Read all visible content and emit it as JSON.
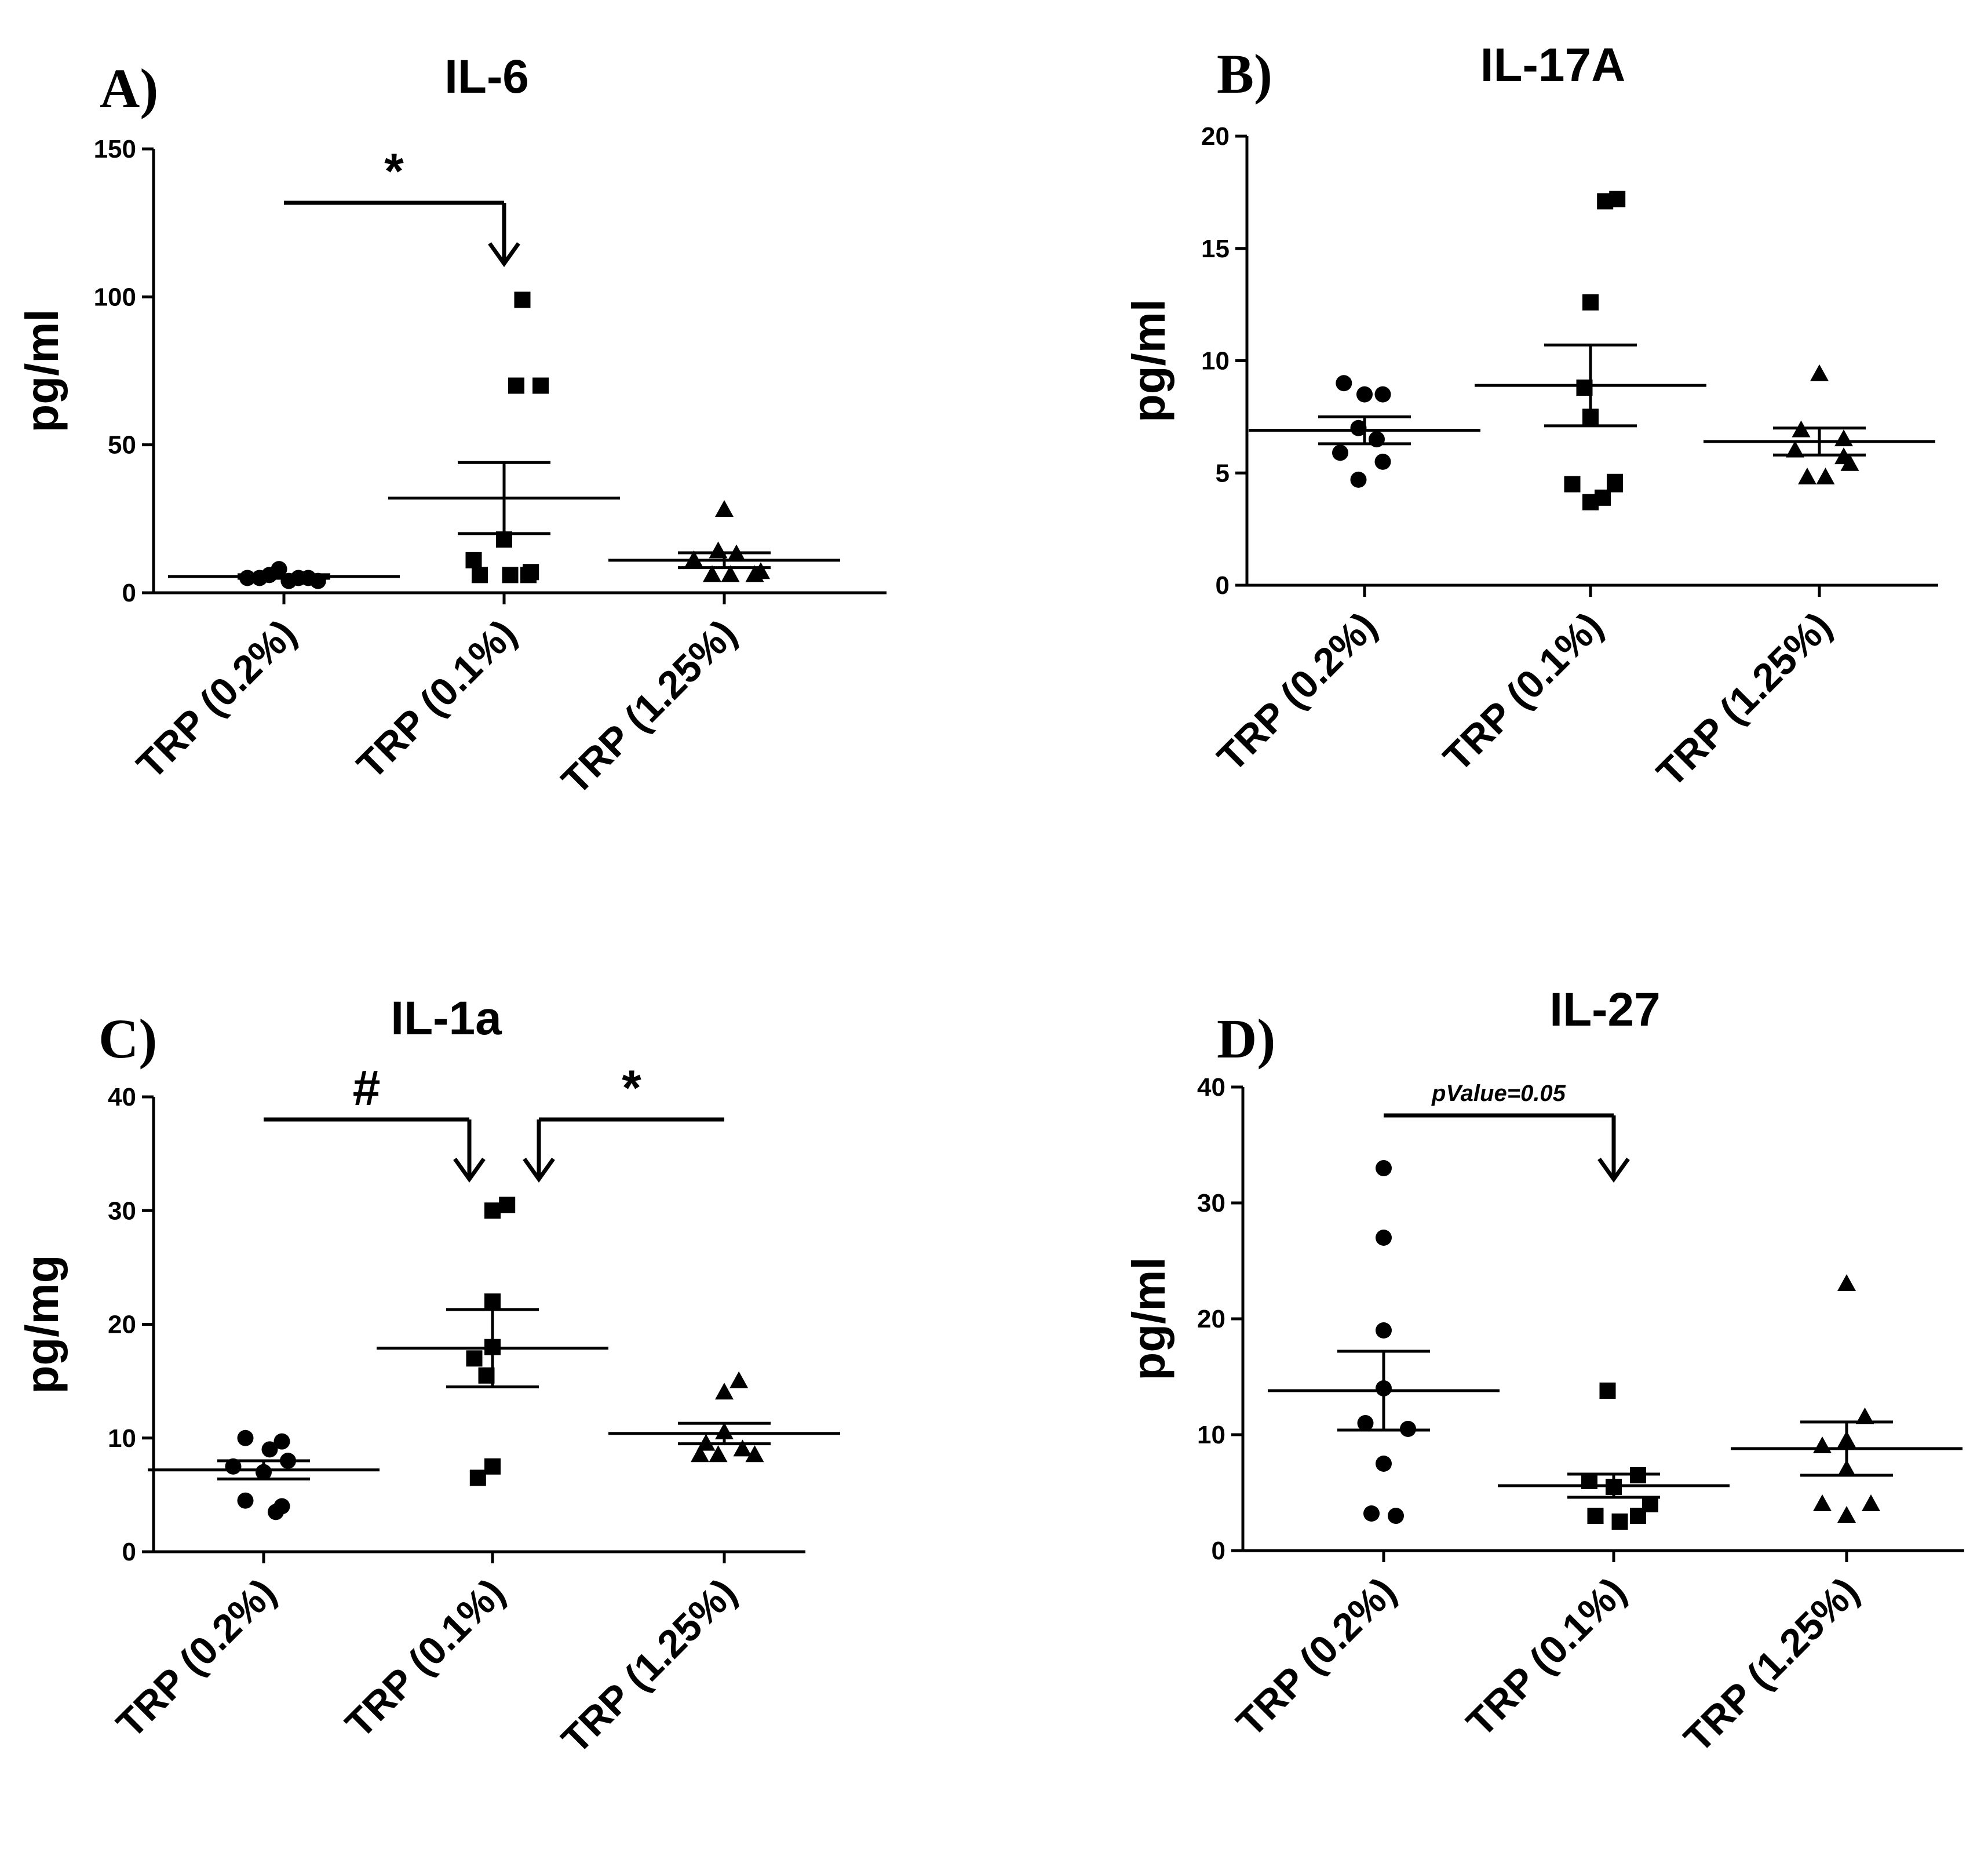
{
  "chart_data": [
    {
      "type": "scatter",
      "panel": "A)",
      "title": "IL-6",
      "ylabel": "pg/ml",
      "xlabel": "",
      "ylim": [
        0,
        150
      ],
      "yticks": [
        0,
        50,
        100,
        150
      ],
      "grid": false,
      "categories": [
        "TRP (0.2%)",
        "TRP (0.1%)",
        "TRP (1.25%)"
      ],
      "series": [
        {
          "name": "TRP (0.2%)",
          "marker": "circle",
          "points": [
            [
              -0.2,
              5
            ],
            [
              -0.12,
              6
            ],
            [
              -0.04,
              8
            ],
            [
              0.04,
              4
            ],
            [
              0.12,
              5
            ],
            [
              0.2,
              5
            ],
            [
              0.28,
              4
            ],
            [
              -0.3,
              5
            ]
          ],
          "mean": 5.5,
          "sem": 0.6
        },
        {
          "name": "TRP (0.1%)",
          "marker": "square",
          "points": [
            [
              0.15,
              99
            ],
            [
              0.1,
              70
            ],
            [
              0.3,
              70
            ],
            [
              0.0,
              18
            ],
            [
              -0.25,
              11
            ],
            [
              -0.2,
              6
            ],
            [
              0.05,
              6
            ],
            [
              0.2,
              6
            ],
            [
              0.22,
              7
            ]
          ],
          "mean": 32,
          "sem": 12
        },
        {
          "name": "TRP (1.25%)",
          "marker": "triangle",
          "points": [
            [
              0.0,
              28
            ],
            [
              -0.05,
              14
            ],
            [
              0.1,
              13
            ],
            [
              -0.25,
              11
            ],
            [
              -0.1,
              6
            ],
            [
              0.05,
              6
            ],
            [
              0.25,
              6
            ],
            [
              0.3,
              7
            ]
          ],
          "mean": 11,
          "sem": 2.5
        }
      ],
      "annotations": [
        {
          "label": "*",
          "from": 0,
          "to": 1
        }
      ]
    },
    {
      "type": "scatter",
      "panel": "B)",
      "title": "IL-17A",
      "ylabel": "pg/ml",
      "xlabel": "",
      "ylim": [
        0,
        20
      ],
      "yticks": [
        0,
        5,
        10,
        15,
        20
      ],
      "grid": false,
      "categories": [
        "TRP (0.2%)",
        "TRP (0.1%)",
        "TRP (1.25%)"
      ],
      "series": [
        {
          "name": "TRP (0.2%)",
          "marker": "circle",
          "points": [
            [
              -0.17,
              9.0
            ],
            [
              0.0,
              8.5
            ],
            [
              0.15,
              8.5
            ],
            [
              -0.05,
              7.0
            ],
            [
              0.1,
              6.5
            ],
            [
              -0.2,
              5.9
            ],
            [
              0.15,
              5.5
            ],
            [
              -0.05,
              4.7
            ]
          ],
          "mean": 6.9,
          "sem": 0.6
        },
        {
          "name": "TRP (0.1%)",
          "marker": "square",
          "points": [
            [
              0.12,
              17.1
            ],
            [
              0.22,
              17.2
            ],
            [
              0.0,
              12.6
            ],
            [
              -0.05,
              8.8
            ],
            [
              0.0,
              7.5
            ],
            [
              -0.15,
              4.5
            ],
            [
              0.2,
              4.5
            ],
            [
              0.2,
              4.6
            ],
            [
              0.0,
              3.7
            ],
            [
              0.1,
              3.9
            ]
          ],
          "mean": 8.9,
          "sem": 1.8
        },
        {
          "name": "TRP (1.25%)",
          "marker": "triangle",
          "points": [
            [
              0.0,
              9.4
            ],
            [
              -0.15,
              6.9
            ],
            [
              0.2,
              6.5
            ],
            [
              -0.2,
              6.0
            ],
            [
              0.2,
              5.7
            ],
            [
              -0.1,
              4.8
            ],
            [
              0.05,
              4.8
            ],
            [
              0.25,
              5.4
            ]
          ],
          "mean": 6.4,
          "sem": 0.6
        }
      ],
      "annotations": []
    },
    {
      "type": "scatter",
      "panel": "C)",
      "title": "IL-1a",
      "ylabel": "pg/mg",
      "xlabel": "",
      "ylim": [
        0,
        40
      ],
      "yticks": [
        0,
        10,
        20,
        30,
        40
      ],
      "grid": false,
      "categories": [
        "TRP (0.2%)",
        "TRP (0.1%)",
        "TRP (1.25%)"
      ],
      "series": [
        {
          "name": "TRP (0.2%)",
          "marker": "circle",
          "points": [
            [
              -0.15,
              10.0
            ],
            [
              0.05,
              9.0
            ],
            [
              0.15,
              9.7
            ],
            [
              -0.25,
              7.5
            ],
            [
              0.0,
              7.0
            ],
            [
              0.2,
              8.0
            ],
            [
              -0.15,
              4.5
            ],
            [
              0.15,
              4.0
            ],
            [
              0.1,
              3.5
            ]
          ],
          "mean": 7.2,
          "sem": 0.8
        },
        {
          "name": "TRP (0.1%)",
          "marker": "square",
          "points": [
            [
              0.0,
              30.0
            ],
            [
              0.12,
              30.5
            ],
            [
              0.0,
              22.0
            ],
            [
              0.0,
              18.0
            ],
            [
              -0.15,
              17.0
            ],
            [
              -0.05,
              15.5
            ],
            [
              0.0,
              7.5
            ],
            [
              -0.12,
              6.5
            ]
          ],
          "mean": 17.9,
          "sem": 3.4
        },
        {
          "name": "TRP (1.25%)",
          "marker": "triangle",
          "points": [
            [
              0.12,
              15.0
            ],
            [
              0.0,
              14.0
            ],
            [
              -0.15,
              9.5
            ],
            [
              0.0,
              10.5
            ],
            [
              0.15,
              9.0
            ],
            [
              -0.2,
              8.5
            ],
            [
              -0.05,
              8.5
            ],
            [
              0.25,
              8.5
            ]
          ],
          "mean": 10.4,
          "sem": 0.9
        }
      ],
      "annotations": [
        {
          "label": "#",
          "from": 0,
          "to": 1
        },
        {
          "label": "*",
          "from": 2,
          "to": 1
        }
      ]
    },
    {
      "type": "scatter",
      "panel": "D)",
      "title": "IL-27",
      "ylabel": "pg/ml",
      "xlabel": "",
      "ylim": [
        0,
        40
      ],
      "yticks": [
        0,
        10,
        20,
        30,
        40
      ],
      "grid": false,
      "categories": [
        "TRP (0.2%)",
        "TRP (0.1%)",
        "TRP (1.25%)"
      ],
      "series": [
        {
          "name": "TRP (0.2%)",
          "marker": "circle",
          "points": [
            [
              0.0,
              33.0
            ],
            [
              0.0,
              27.0
            ],
            [
              0.0,
              19.0
            ],
            [
              0.0,
              14.0
            ],
            [
              -0.15,
              11.0
            ],
            [
              0.2,
              10.5
            ],
            [
              0.0,
              7.5
            ],
            [
              -0.1,
              3.2
            ],
            [
              0.1,
              3.0
            ]
          ],
          "mean": 13.8,
          "sem": 3.4
        },
        {
          "name": "TRP (0.1%)",
          "marker": "square",
          "points": [
            [
              -0.05,
              13.8
            ],
            [
              -0.2,
              6.0
            ],
            [
              0.2,
              6.5
            ],
            [
              0.0,
              5.5
            ],
            [
              0.3,
              4.0
            ],
            [
              -0.15,
              3.0
            ],
            [
              0.05,
              2.5
            ],
            [
              0.2,
              3.0
            ]
          ],
          "mean": 5.6,
          "sem": 1.0
        },
        {
          "name": "TRP (1.25%)",
          "marker": "triangle",
          "points": [
            [
              0.0,
              23.0
            ],
            [
              0.15,
              11.5
            ],
            [
              0.0,
              9.5
            ],
            [
              -0.2,
              9.0
            ],
            [
              0.0,
              7.0
            ],
            [
              -0.2,
              4.0
            ],
            [
              0.2,
              4.0
            ],
            [
              0.0,
              3.0
            ]
          ],
          "mean": 8.8,
          "sem": 2.3
        }
      ],
      "annotations": [
        {
          "label": "pValue=0.05",
          "from": 0,
          "to": 1
        }
      ]
    }
  ]
}
